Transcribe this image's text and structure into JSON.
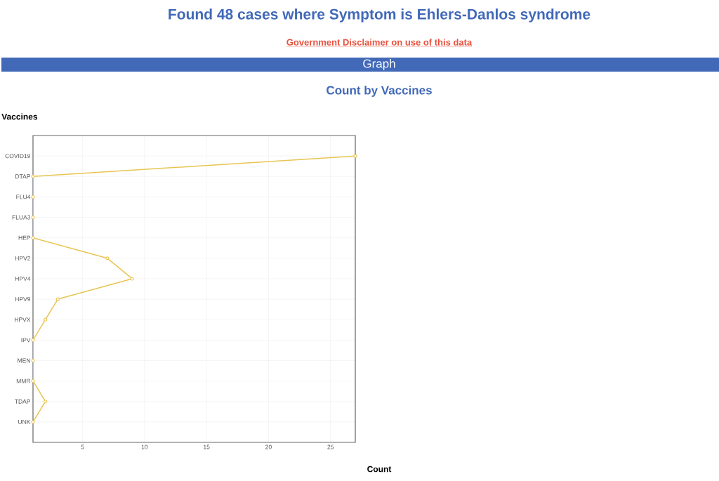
{
  "chart_data": {
    "type": "line",
    "title": "Found 48 cases where Symptom is Ehlers-Danlos syndrome",
    "annotations": [
      "Government Disclaimer on use of this data",
      "Graph"
    ],
    "subtitle": "Count by Vaccines",
    "xlabel": "Count",
    "ylabel": "Vaccines",
    "orientation": "horizontal",
    "categories": [
      "COVID19",
      "DTAP",
      "FLU4",
      "FLUA3",
      "HEP",
      "HPV2",
      "HPV4",
      "HPV9",
      "HPVX",
      "IPV",
      "MEN",
      "MMR",
      "TDAP",
      "UNK"
    ],
    "values": [
      27,
      1,
      1,
      1,
      1,
      7,
      9,
      3,
      2,
      1,
      1,
      1,
      2,
      1
    ],
    "color": "#e8c552",
    "xlim": [
      1,
      27
    ],
    "xticks": [
      5,
      10,
      15,
      20,
      25
    ],
    "grid": true,
    "marker": "circle"
  }
}
